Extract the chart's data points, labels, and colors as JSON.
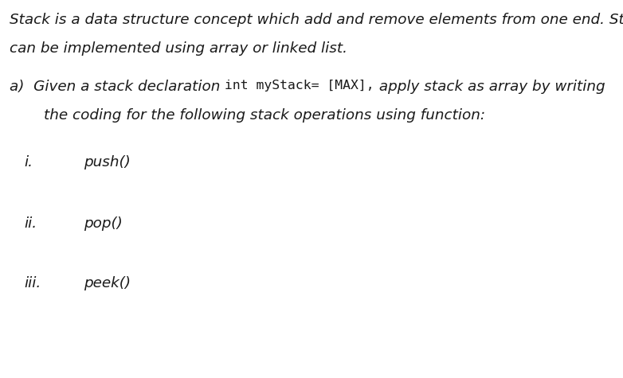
{
  "bg_color": "#ffffff",
  "text_color": "#1a1a1a",
  "fig_width": 7.82,
  "fig_height": 4.75,
  "dpi": 100,
  "line1": "Stack is a data structure concept which add and remove elements from one end. Stack",
  "line2": "can be implemented using array or linked list.",
  "line3_a": "a)  Given a stack declaration ",
  "line3_code": "int myStack= [MAX],",
  "line3_b": " apply stack as array by writing",
  "line4": "the coding for the following stack operations using function:",
  "item_i_label": "i.",
  "item_i_text": "push()",
  "item_ii_label": "ii.",
  "item_ii_text": "pop()",
  "item_iii_label": "iii.",
  "item_iii_text": "peek()",
  "fs": 13.2,
  "fs_code": 11.8
}
